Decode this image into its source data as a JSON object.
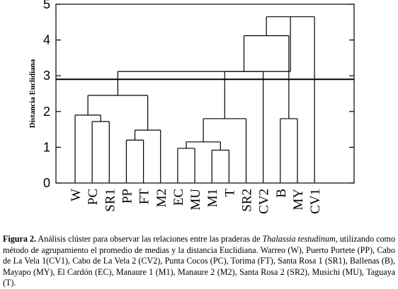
{
  "chart_data": {
    "type": "dendrogram",
    "ylabel": "Distancia  Euclidiana",
    "ylim": [
      0,
      5
    ],
    "yticks": [
      0,
      1,
      2,
      3,
      4,
      5
    ],
    "leaves": [
      "W",
      "PC",
      "SR1",
      "PP",
      "FT",
      "M2",
      "EC",
      "MU",
      "M1",
      "T",
      "SR2",
      "CV2",
      "B",
      "MY",
      "CV1"
    ],
    "merges": [
      {
        "left": "PC",
        "right": "SR1",
        "height": 1.72
      },
      {
        "left": "W",
        "right": "(PC,SR1)",
        "height": 1.9
      },
      {
        "left": "PP",
        "right": "FT",
        "height": 1.2
      },
      {
        "left": "(PP,FT)",
        "right": "M2",
        "height": 1.48
      },
      {
        "left": "(W,PC,SR1)",
        "right": "(PP,FT,M2)",
        "height": 2.45
      },
      {
        "left": "EC",
        "right": "MU",
        "height": 0.97
      },
      {
        "left": "M1",
        "right": "T",
        "height": 0.92
      },
      {
        "left": "(EC,MU)",
        "right": "(M1,T)",
        "height": 1.15
      },
      {
        "left": "(EC,MU,M1,T)",
        "right": "SR2",
        "height": 1.8
      },
      {
        "left": "(EC,MU,M1,T,SR2)",
        "right": "CV2",
        "height": 3.12
      },
      {
        "left": "B",
        "right": "MY",
        "height": 1.8
      },
      {
        "left": "(EC..CV2)",
        "right": "(B,MY)",
        "height": 4.12
      },
      {
        "left": "(EC..MY)",
        "right": "CV1",
        "height": 4.65
      },
      {
        "left": "(W..M2)",
        "right": "(EC..CV1)",
        "height": 3.12
      }
    ],
    "cut_line": 2.9,
    "grid": false
  },
  "caption": {
    "label": "Figura 2.",
    "text_before_species": " Análisis clúster para observar las relaciones entre las praderas de ",
    "species": "Thalassia testudinum,",
    "text_after_species": " utilizando como método de agrupamiento el promedio de medias y la distancia Euclidiana. Warreo (W), Puerto Portete (PP), Cabo de La Vela 1(CV1), Cabo de La Vela 2 (CV2), Punta Cocos (PC),  Torima (FT), Santa Rosa 1 (SR1), Ballenas (B), Mayapo (MY), El Cardón (EC), Manaure 1 (M1), Manaure 2 (M2), Santa Rosa 2 (SR2), Musichi (MU), Taguaya (T)."
  }
}
